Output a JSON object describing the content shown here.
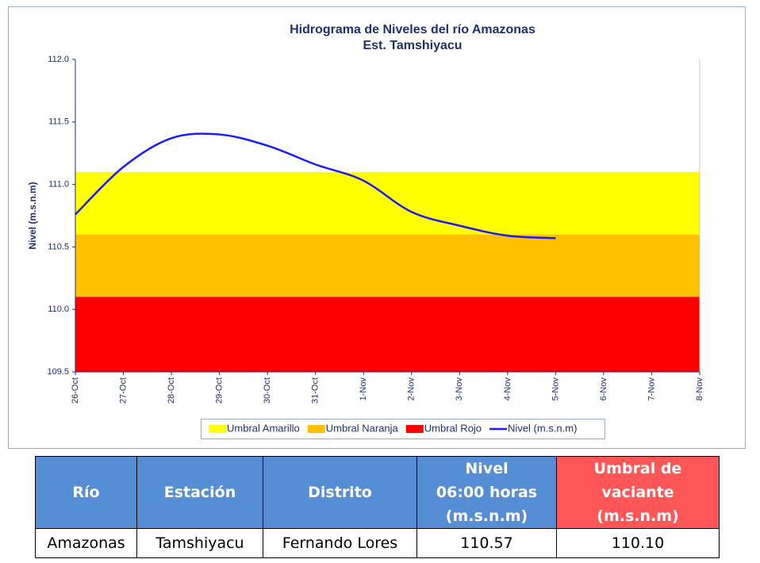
{
  "chart_data": {
    "type": "line",
    "title": "Hidrograma de Niveles del río Amazonas",
    "subtitle": "Est. Tamshiyacu",
    "ylabel": "Nivel (m.s.n.m)",
    "categories": [
      "26-Oct",
      "27-Oct",
      "28-Oct",
      "29-Oct",
      "30-Oct",
      "31-Oct",
      "1-Nov",
      "2-Nov",
      "3-Nov",
      "4-Nov",
      "5-Nov",
      "6-Nov",
      "7-Nov",
      "8-Nov"
    ],
    "ylim": [
      109.5,
      112.0
    ],
    "yticks": [
      109.5,
      {
        "value": 110.0,
        "label": "110.0"
      },
      110.5,
      {
        "value": 111.0,
        "label": "111.0"
      },
      111.5,
      {
        "value": 112.0,
        "label": "112.0"
      }
    ],
    "bands": [
      {
        "name": "Umbral Amarillo",
        "color": "#ffff00",
        "from": 110.6,
        "to": 111.1
      },
      {
        "name": "Umbral Naranja",
        "color": "#ffc000",
        "from": 110.1,
        "to": 110.6
      },
      {
        "name": "Umbral Rojo",
        "color": "#ff0000",
        "from": 109.5,
        "to": 110.1
      }
    ],
    "series": [
      {
        "name": "Nivel (m.s.n.m)",
        "color": "#1a1aff",
        "values": [
          110.76,
          111.14,
          111.37,
          111.4,
          111.31,
          111.16,
          111.03,
          110.78,
          110.67,
          110.59,
          110.57,
          null,
          null,
          null
        ]
      }
    ],
    "legend": "bottom"
  },
  "table": {
    "header": [
      "Río",
      "Estación",
      "Distrito",
      "Nivel\n06:00 horas\n(m.s.n.m)",
      "Umbral de\nvaciante\n(m.s.n.m)"
    ],
    "rows": [
      [
        "Amazonas",
        "Tamshiyacu",
        "Fernando Lores",
        "110.57",
        "110.10"
      ]
    ]
  }
}
